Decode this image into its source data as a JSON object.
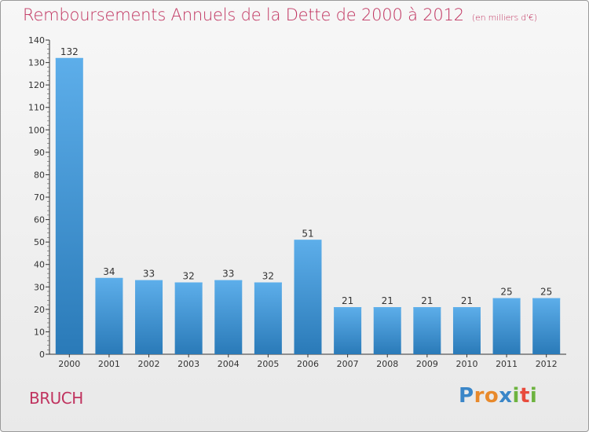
{
  "title": "Remboursements Annuels de la Dette de 2000 à 2012",
  "subtitle": "(en milliers d'€)",
  "commune": "BRUCH",
  "logo": {
    "letters": [
      "P",
      "r",
      "o",
      "x",
      "i",
      "t",
      "i"
    ],
    "colors": [
      "#3a86c8",
      "#e8892b",
      "#e8892b",
      "#3a86c8",
      "#6db33f",
      "#e84b3c",
      "#6db33f"
    ]
  },
  "colors": {
    "bar_light": "#5daeea",
    "bar_dark": "#2a7ab8",
    "title": "#c0335f"
  },
  "chart_data": {
    "type": "bar",
    "title": "Remboursements Annuels de la Dette de 2000 à 2012",
    "subtitle": "(en milliers d'€)",
    "categories": [
      "2000",
      "2001",
      "2002",
      "2003",
      "2004",
      "2005",
      "2006",
      "2007",
      "2008",
      "2009",
      "2010",
      "2011",
      "2012"
    ],
    "values": [
      132,
      34,
      33,
      32,
      33,
      32,
      51,
      21,
      21,
      21,
      21,
      25,
      25
    ],
    "ylim": [
      0,
      140
    ],
    "yticks": [
      0,
      10,
      20,
      30,
      40,
      50,
      60,
      70,
      80,
      90,
      100,
      110,
      120,
      130,
      140
    ],
    "xlabel": "",
    "ylabel": "",
    "grid": false,
    "data_labels": true
  }
}
